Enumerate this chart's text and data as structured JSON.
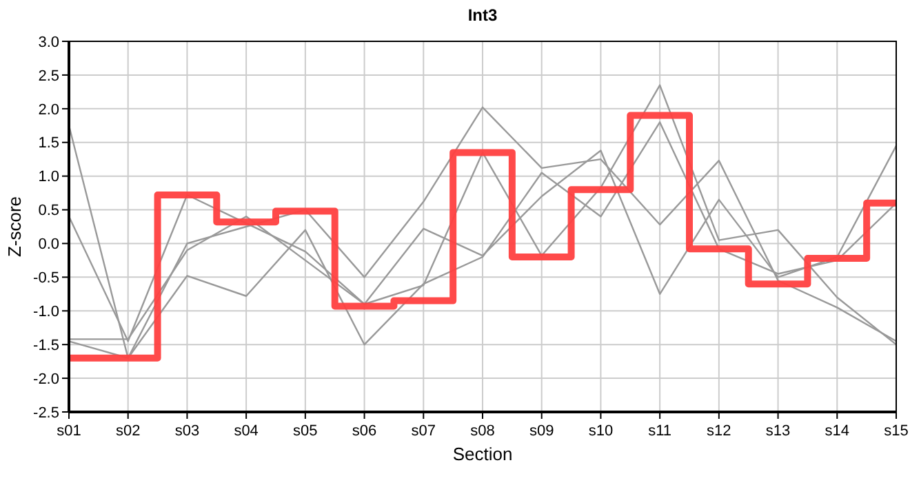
{
  "chart_data": {
    "type": "line",
    "title": "Int3",
    "xlabel": "Section",
    "ylabel": "Z-score",
    "categories": [
      "s01",
      "s02",
      "s03",
      "s04",
      "s05",
      "s06",
      "s07",
      "s08",
      "s09",
      "s10",
      "s11",
      "s12",
      "s13",
      "s14",
      "s15"
    ],
    "series": [
      {
        "color": "#999999",
        "values": [
          1.75,
          -1.7,
          0.0,
          0.25,
          0.5,
          -0.5,
          0.62,
          2.02,
          1.12,
          1.25,
          0.28,
          1.23,
          -0.55,
          -0.95,
          -1.45
        ]
      },
      {
        "color": "#999999",
        "values": [
          0.4,
          -1.45,
          0.72,
          0.3,
          -0.12,
          -0.9,
          0.22,
          -0.18,
          0.7,
          1.38,
          -0.75,
          0.65,
          -0.5,
          -0.2,
          1.45
        ]
      },
      {
        "color": "#999999",
        "values": [
          -1.42,
          -1.42,
          -0.1,
          0.4,
          -0.25,
          -0.9,
          -0.62,
          1.35,
          -0.18,
          0.83,
          2.35,
          0.05,
          0.2,
          -0.8,
          -1.5
        ]
      },
      {
        "color": "#999999",
        "values": [
          -1.45,
          -1.7,
          -0.48,
          -0.78,
          0.2,
          -1.5,
          -0.6,
          -0.2,
          1.05,
          0.4,
          1.8,
          -0.08,
          -0.45,
          -0.25,
          0.6
        ]
      },
      {
        "type": "step",
        "color": "#ff4040",
        "values": [
          -1.7,
          -1.7,
          0.72,
          0.32,
          0.48,
          -0.93,
          -0.85,
          1.35,
          -0.2,
          0.8,
          1.9,
          -0.08,
          -0.6,
          -0.22,
          0.6
        ]
      }
    ],
    "ylim": [
      -2.5,
      3.0
    ],
    "yticks": [
      {
        "value": -2.5,
        "label": "-2.5"
      },
      {
        "value": -2,
        "label": "-2.0"
      },
      {
        "value": -1.5,
        "label": "-1.5"
      },
      {
        "value": -1,
        "label": "-1.0"
      },
      {
        "value": -0.5,
        "label": "-0.5"
      },
      {
        "value": 0,
        "label": "0.0"
      },
      {
        "value": 0.5,
        "label": "0.5"
      },
      {
        "value": 1,
        "label": "1.0"
      },
      {
        "value": 1.5,
        "label": "1.5"
      },
      {
        "value": 2,
        "label": "2.0"
      },
      {
        "value": 2.5,
        "label": "2.5"
      },
      {
        "value": 3,
        "label": "3.0"
      }
    ],
    "grid": true
  }
}
